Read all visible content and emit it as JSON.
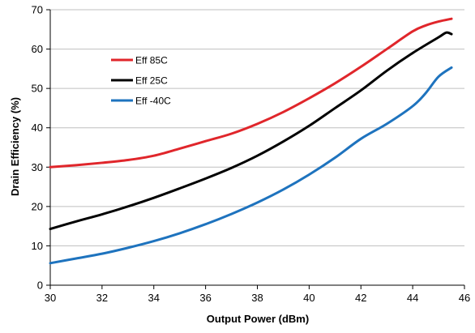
{
  "chart_data": {
    "type": "line",
    "title": "",
    "xlabel": "Output Power (dBm)",
    "ylabel": "Drain Efficiency (%)",
    "xlim": [
      30,
      46
    ],
    "ylim": [
      0,
      70
    ],
    "xticks": [
      30,
      32,
      34,
      36,
      38,
      40,
      42,
      44,
      46
    ],
    "yticks": [
      0,
      10,
      20,
      30,
      40,
      50,
      60,
      70
    ],
    "grid": {
      "horizontal": true,
      "vertical": false
    },
    "legend_position": "upper-left",
    "series": [
      {
        "name": "Eff 85C",
        "color": "#e0262b",
        "x": [
          30,
          31,
          32,
          33,
          34,
          35,
          36,
          37,
          38,
          39,
          40,
          41,
          42,
          43,
          44,
          44.5,
          45,
          45.5
        ],
        "y": [
          30,
          30.5,
          31.1,
          31.8,
          32.9,
          34.7,
          36.6,
          38.5,
          41,
          44,
          47.5,
          51.3,
          55.5,
          60,
          64.5,
          66,
          67,
          67.7
        ]
      },
      {
        "name": "Eff 25C",
        "color": "#000000",
        "x": [
          30,
          31,
          32,
          33,
          34,
          35,
          36,
          37,
          38,
          39,
          40,
          41,
          42,
          43,
          44,
          45,
          45.3,
          45.5
        ],
        "y": [
          14.3,
          16.2,
          18,
          20,
          22.2,
          24.6,
          27.1,
          29.8,
          32.9,
          36.5,
          40.5,
          45,
          49.5,
          54.5,
          59,
          63,
          64.2,
          63.8
        ]
      },
      {
        "name": "Eff -40C",
        "color": "#1e73be",
        "x": [
          30,
          31,
          32,
          33,
          34,
          35,
          36,
          37,
          38,
          39,
          40,
          41,
          42,
          43,
          44,
          44.5,
          45,
          45.5
        ],
        "y": [
          5.6,
          6.8,
          8,
          9.5,
          11.2,
          13.2,
          15.5,
          18.1,
          21,
          24.3,
          28.1,
          32.4,
          37.2,
          41,
          45.5,
          48.8,
          53,
          55.3
        ]
      }
    ]
  }
}
